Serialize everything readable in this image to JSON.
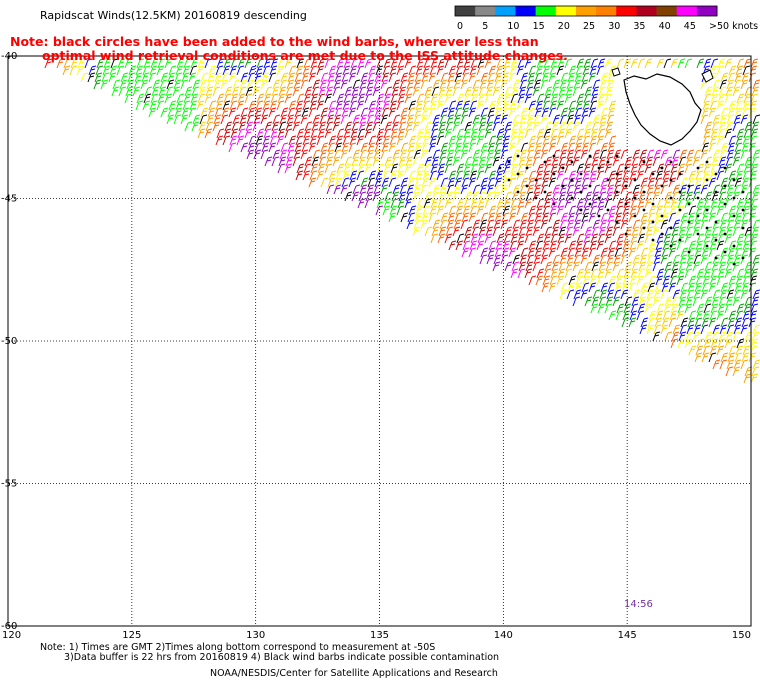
{
  "title": "Rapidscat Winds(12.5KM) 20160819 descending",
  "note_line1": "Note: black circles have been added to the wind barbs, wherever less than",
  "note_line2": "optimal wind retrieval conditions are met due to the ISS attitude changes.",
  "legend": {
    "labels": [
      "0",
      "5",
      "10",
      "15",
      "20",
      "25",
      "30",
      "35",
      "40",
      "45",
      ">50 knots"
    ],
    "colors": [
      "#404040",
      "#888888",
      "#00a0ff",
      "#0000ff",
      "#00ff00",
      "#ffff00",
      "#ffa000",
      "#ff8000",
      "#ff0000",
      "#b00020",
      "#804000",
      "#ff00ff",
      "#9000c0"
    ]
  },
  "axes": {
    "lat_labels": [
      "-40",
      "-45",
      "-50",
      "-55",
      "-60"
    ],
    "lon_labels": [
      "120",
      "125",
      "130",
      "135",
      "140",
      "145",
      "150"
    ],
    "lat_range": [
      -40,
      -60
    ],
    "lon_range": [
      120,
      150
    ]
  },
  "timestamp": "14:56",
  "footnote_line1": "Note: 1) Times are GMT 2)Times along bottom correspond to measurement at -50S",
  "footnote_line2": "3)Data buffer is 22 hrs from 20160819 4) Black wind barbs indicate possible contamination",
  "credit": "NOAA/NESDIS/Center for Satellite Applications and Research"
}
